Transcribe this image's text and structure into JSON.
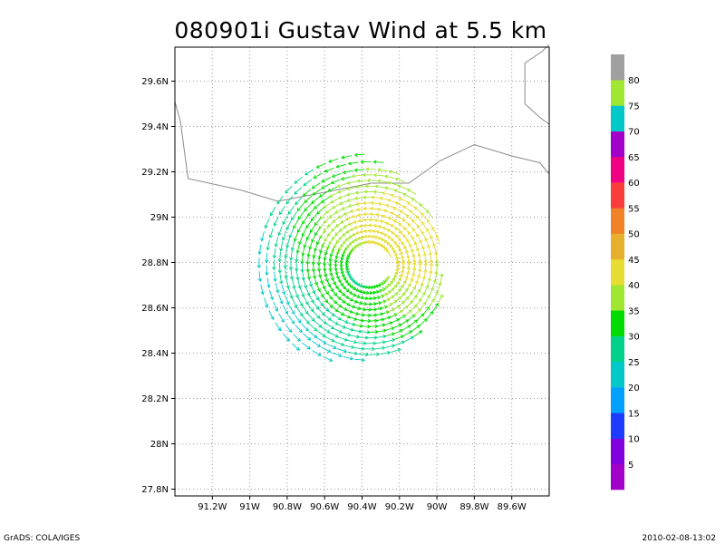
{
  "chart_data": {
    "type": "vector-field",
    "title": "080901i Gustav Wind at 5.5 km",
    "xlim": [
      -91.4,
      -89.4
    ],
    "ylim": [
      27.77,
      29.75
    ],
    "x_ticks": [
      -91.2,
      -91.0,
      -90.8,
      -90.6,
      -90.4,
      -90.2,
      -90.0,
      -89.8,
      -89.6
    ],
    "x_tick_labels": [
      "91.2W",
      "91W",
      "90.8W",
      "90.6W",
      "90.4W",
      "90.2W",
      "90W",
      "89.8W",
      "89.6W"
    ],
    "y_ticks": [
      27.8,
      28.0,
      28.2,
      28.4,
      28.6,
      28.8,
      29.0,
      29.2,
      29.4,
      29.6
    ],
    "y_tick_labels": [
      "27.8N",
      "28N",
      "28.2N",
      "28.4N",
      "28.6N",
      "28.8N",
      "29N",
      "29.2N",
      "29.4N",
      "29.6N"
    ],
    "grid": true,
    "storm_center": {
      "lon": -90.36,
      "lat": 28.79
    },
    "colorbar": {
      "levels": [
        "5",
        "10",
        "15",
        "20",
        "25",
        "30",
        "35",
        "40",
        "45",
        "50",
        "55",
        "60",
        "65",
        "70",
        "75",
        "80"
      ],
      "colors": [
        "#a000c8",
        "#8200dc",
        "#1e3cff",
        "#00a0ff",
        "#00c8c8",
        "#00d28c",
        "#00dc00",
        "#a0e632",
        "#e6dc32",
        "#e6af2d",
        "#f08228",
        "#fa3c3c",
        "#f00082",
        "#a000c8",
        "#00c8c8",
        "#a0e632",
        "#a0a0a0"
      ]
    },
    "coastline": [
      [
        [
          -91.4,
          29.51
        ],
        [
          -91.37,
          29.42
        ],
        [
          -91.33,
          29.17
        ],
        [
          -91.05,
          29.12
        ],
        [
          -90.85,
          29.07
        ],
        [
          -90.6,
          29.11
        ],
        [
          -90.35,
          29.15
        ],
        [
          -90.15,
          29.15
        ],
        [
          -89.98,
          29.25
        ],
        [
          -89.8,
          29.32
        ],
        [
          -89.6,
          29.27
        ],
        [
          -89.45,
          29.24
        ],
        [
          -89.4,
          29.19
        ]
      ],
      [
        [
          -89.4,
          29.76
        ],
        [
          -89.44,
          29.73
        ],
        [
          -89.53,
          29.68
        ],
        [
          -89.53,
          29.5
        ],
        [
          -89.45,
          29.44
        ],
        [
          -89.4,
          29.41
        ]
      ]
    ],
    "wind_rings": [
      {
        "r": 0.12,
        "speed": 36,
        "start_deg": 30,
        "end_deg": 320
      },
      {
        "r": 0.15,
        "speed": 37,
        "start_deg": 0,
        "end_deg": 360
      },
      {
        "r": 0.18,
        "speed": 38,
        "start_deg": 0,
        "end_deg": 360
      },
      {
        "r": 0.21,
        "speed": 38,
        "start_deg": 0,
        "end_deg": 360
      },
      {
        "r": 0.24,
        "speed": 38,
        "start_deg": 0,
        "end_deg": 360
      },
      {
        "r": 0.27,
        "speed": 38,
        "start_deg": 0,
        "end_deg": 360
      },
      {
        "r": 0.3,
        "speed": 37,
        "start_deg": 0,
        "end_deg": 360
      },
      {
        "r": 0.33,
        "speed": 36,
        "start_deg": 0,
        "end_deg": 360
      },
      {
        "r": 0.36,
        "speed": 35,
        "start_deg": 0,
        "end_deg": 360
      },
      {
        "r": 0.39,
        "speed": 34,
        "start_deg": 20,
        "end_deg": 350
      },
      {
        "r": 0.42,
        "speed": 33,
        "start_deg": 40,
        "end_deg": 340
      },
      {
        "r": 0.45,
        "speed": 32,
        "start_deg": 60,
        "end_deg": 310
      },
      {
        "r": 0.48,
        "speed": 31,
        "start_deg": 70,
        "end_deg": 290
      },
      {
        "r": 0.51,
        "speed": 30,
        "start_deg": 75,
        "end_deg": 270
      },
      {
        "r": 0.55,
        "speed": 29,
        "start_deg": 85,
        "end_deg": 250
      },
      {
        "r": 0.59,
        "speed": 28,
        "start_deg": 95,
        "end_deg": 235
      }
    ]
  },
  "footer": {
    "left": "GrADS: COLA/IGES",
    "right": "2010-02-08-13:02"
  }
}
